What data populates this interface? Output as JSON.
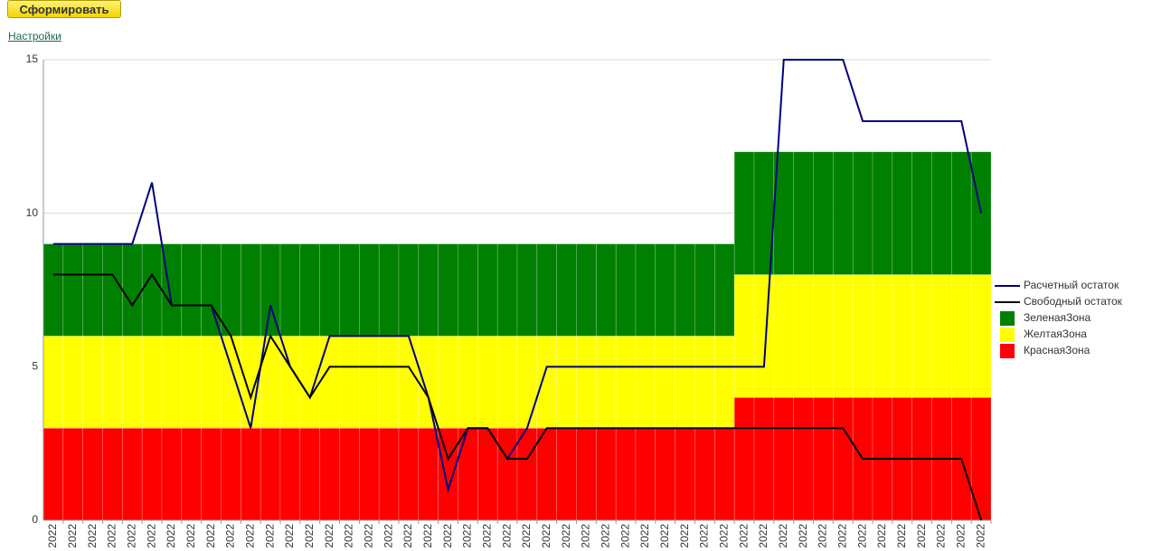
{
  "button": "Сформировать",
  "link": "Настройки",
  "chart_data": {
    "type": "combo",
    "categories": [
      "2022",
      "2022",
      "2022",
      "2022",
      "2022",
      "2022",
      "2022",
      "2022",
      "2022",
      "2022",
      "2022",
      "2022",
      "2022",
      "2022",
      "2022",
      "2022",
      "2022",
      "2022",
      "2022",
      "2022",
      "2022",
      "2022",
      "2022",
      "2022",
      "2022",
      "2022",
      "2022",
      "2022",
      "2022",
      "2022",
      "2022",
      "2022",
      "2022",
      "2022",
      "2022",
      "2022",
      "2022",
      "2022",
      "2022",
      "2022",
      "2022",
      "2022",
      "2022",
      "2022",
      "2022",
      "2022",
      "2022",
      "2022"
    ],
    "ylim": [
      0,
      15
    ],
    "yticks": [
      0,
      5,
      10,
      15
    ],
    "grid": true,
    "legend": "right",
    "series": [
      {
        "name": "Расчетный остаток",
        "kind": "line",
        "color": "#000080",
        "values": [
          9,
          9,
          9,
          9,
          9,
          11,
          7,
          7,
          7,
          5,
          3,
          7,
          5,
          4,
          6,
          6,
          6,
          6,
          6,
          4,
          1,
          3,
          3,
          2,
          3,
          5,
          5,
          5,
          5,
          5,
          5,
          5,
          5,
          5,
          5,
          5,
          5,
          15,
          15,
          15,
          15,
          13,
          13,
          13,
          13,
          13,
          13,
          10
        ]
      },
      {
        "name": "Свободный остаток",
        "kind": "line",
        "color": "#000000",
        "values": [
          8,
          8,
          8,
          8,
          7,
          8,
          7,
          7,
          7,
          6,
          4,
          6,
          5,
          4,
          5,
          5,
          5,
          5,
          5,
          4,
          2,
          3,
          3,
          2,
          2,
          3,
          3,
          3,
          3,
          3,
          3,
          3,
          3,
          3,
          3,
          3,
          3,
          3,
          3,
          3,
          3,
          2,
          2,
          2,
          2,
          2,
          2,
          0
        ]
      },
      {
        "name": "ЗеленаяЗона",
        "kind": "bar",
        "color": "#008000",
        "values": [
          3,
          3,
          3,
          3,
          3,
          3,
          3,
          3,
          3,
          3,
          3,
          3,
          3,
          3,
          3,
          3,
          3,
          3,
          3,
          3,
          3,
          3,
          3,
          3,
          3,
          3,
          3,
          3,
          3,
          3,
          3,
          3,
          3,
          3,
          3,
          4,
          4,
          4,
          4,
          4,
          4,
          4,
          4,
          4,
          4,
          4,
          4,
          4
        ]
      },
      {
        "name": "ЖелтаяЗона",
        "kind": "bar",
        "color": "#ffff00",
        "values": [
          3,
          3,
          3,
          3,
          3,
          3,
          3,
          3,
          3,
          3,
          3,
          3,
          3,
          3,
          3,
          3,
          3,
          3,
          3,
          3,
          3,
          3,
          3,
          3,
          3,
          3,
          3,
          3,
          3,
          3,
          3,
          3,
          3,
          3,
          3,
          4,
          4,
          4,
          4,
          4,
          4,
          4,
          4,
          4,
          4,
          4,
          4,
          4
        ]
      },
      {
        "name": "КраснаяЗона",
        "kind": "bar",
        "color": "#ff0000",
        "values": [
          3,
          3,
          3,
          3,
          3,
          3,
          3,
          3,
          3,
          3,
          3,
          3,
          3,
          3,
          3,
          3,
          3,
          3,
          3,
          3,
          3,
          3,
          3,
          3,
          3,
          3,
          3,
          3,
          3,
          3,
          3,
          3,
          3,
          3,
          3,
          4,
          4,
          4,
          4,
          4,
          4,
          4,
          4,
          4,
          4,
          4,
          4,
          4
        ]
      }
    ]
  }
}
